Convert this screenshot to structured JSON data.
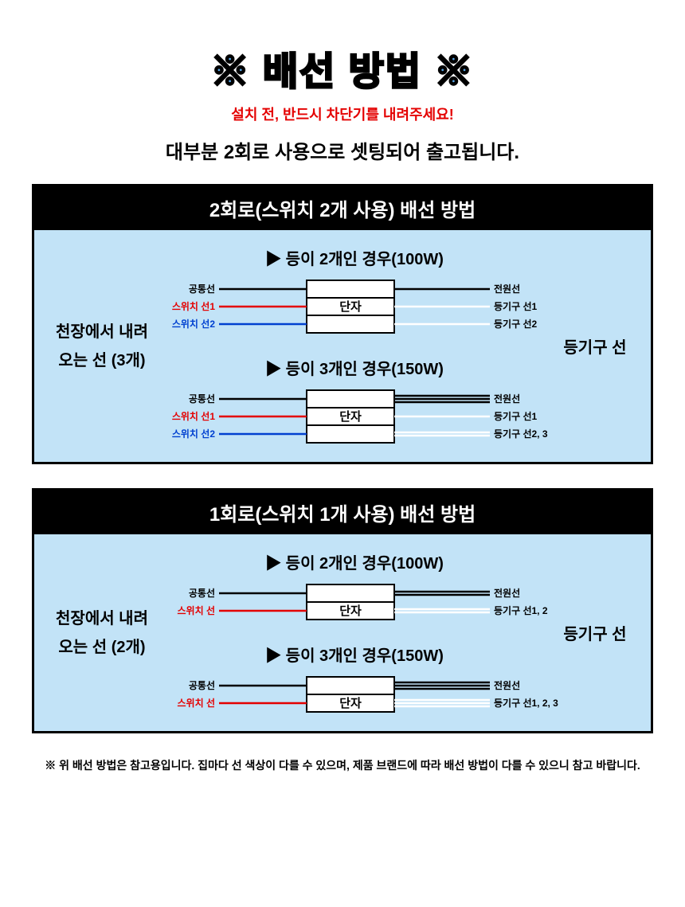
{
  "header": {
    "title": "※ 배선 방법 ※",
    "warning": "설치 전, 반드시 차단기를 내려주세요!",
    "subtitle": "대부분 2회로 사용으로 셋팅되어 출고됩니다."
  },
  "section1": {
    "title": "2회로(스위치 2개 사용) 배선 방법",
    "left_label": "천장에서 내려오는 선 (3개)",
    "right_label": "등기구 선",
    "case1": {
      "title": "▶ 등이 2개인 경우(100W)",
      "terminal_label": "단자",
      "left_wires": [
        {
          "label": "공통선",
          "color": "#000000",
          "count": 1
        },
        {
          "label": "스위치 선1",
          "color": "#e40000",
          "count": 1
        },
        {
          "label": "스위치 선2",
          "color": "#0040d0",
          "count": 1
        }
      ],
      "right_wires": [
        {
          "label": "전원선",
          "color": "#000000",
          "count": 1
        },
        {
          "label": "등기구 선1",
          "color": "#ffffff",
          "count": 1
        },
        {
          "label": "등기구 선2",
          "color": "#ffffff",
          "count": 1
        }
      ]
    },
    "case2": {
      "title": "▶ 등이 3개인 경우(150W)",
      "terminal_label": "단자",
      "left_wires": [
        {
          "label": "공통선",
          "color": "#000000",
          "count": 1
        },
        {
          "label": "스위치 선1",
          "color": "#e40000",
          "count": 1
        },
        {
          "label": "스위치 선2",
          "color": "#0040d0",
          "count": 1
        }
      ],
      "right_wires": [
        {
          "label": "전원선",
          "color": "#000000",
          "count": 3
        },
        {
          "label": "등기구 선1",
          "color": "#ffffff",
          "count": 1
        },
        {
          "label": "등기구 선2, 3",
          "color": "#ffffff",
          "count": 2
        }
      ]
    }
  },
  "section2": {
    "title": "1회로(스위치 1개 사용) 배선 방법",
    "left_label": "천장에서 내려오는 선 (2개)",
    "right_label": "등기구 선",
    "case1": {
      "title": "▶ 등이 2개인 경우(100W)",
      "terminal_label": "단자",
      "left_wires": [
        {
          "label": "공통선",
          "color": "#000000",
          "count": 1
        },
        {
          "label": "스위치 선",
          "color": "#e40000",
          "count": 1
        }
      ],
      "right_wires": [
        {
          "label": "전원선",
          "color": "#000000",
          "count": 2
        },
        {
          "label": "등기구 선1, 2",
          "color": "#ffffff",
          "count": 2
        }
      ]
    },
    "case2": {
      "title": "▶ 등이 3개인 경우(150W)",
      "terminal_label": "단자",
      "left_wires": [
        {
          "label": "공통선",
          "color": "#000000",
          "count": 1
        },
        {
          "label": "스위치 선",
          "color": "#e40000",
          "count": 1
        }
      ],
      "right_wires": [
        {
          "label": "전원선",
          "color": "#000000",
          "count": 3
        },
        {
          "label": "등기구 선1, 2, 3",
          "color": "#ffffff",
          "count": 3
        }
      ]
    }
  },
  "footnote": "※ 위 배선 방법은 참고용입니다. 집마다 선 색상이 다를 수 있으며, 제품 브랜드에 따라 배선 방법이 다를 수 있으니 참고 바랍니다.",
  "colors": {
    "bg_panel": "#c2e3f7",
    "title_fill": "#5ba8e8",
    "warning": "#e40000"
  }
}
